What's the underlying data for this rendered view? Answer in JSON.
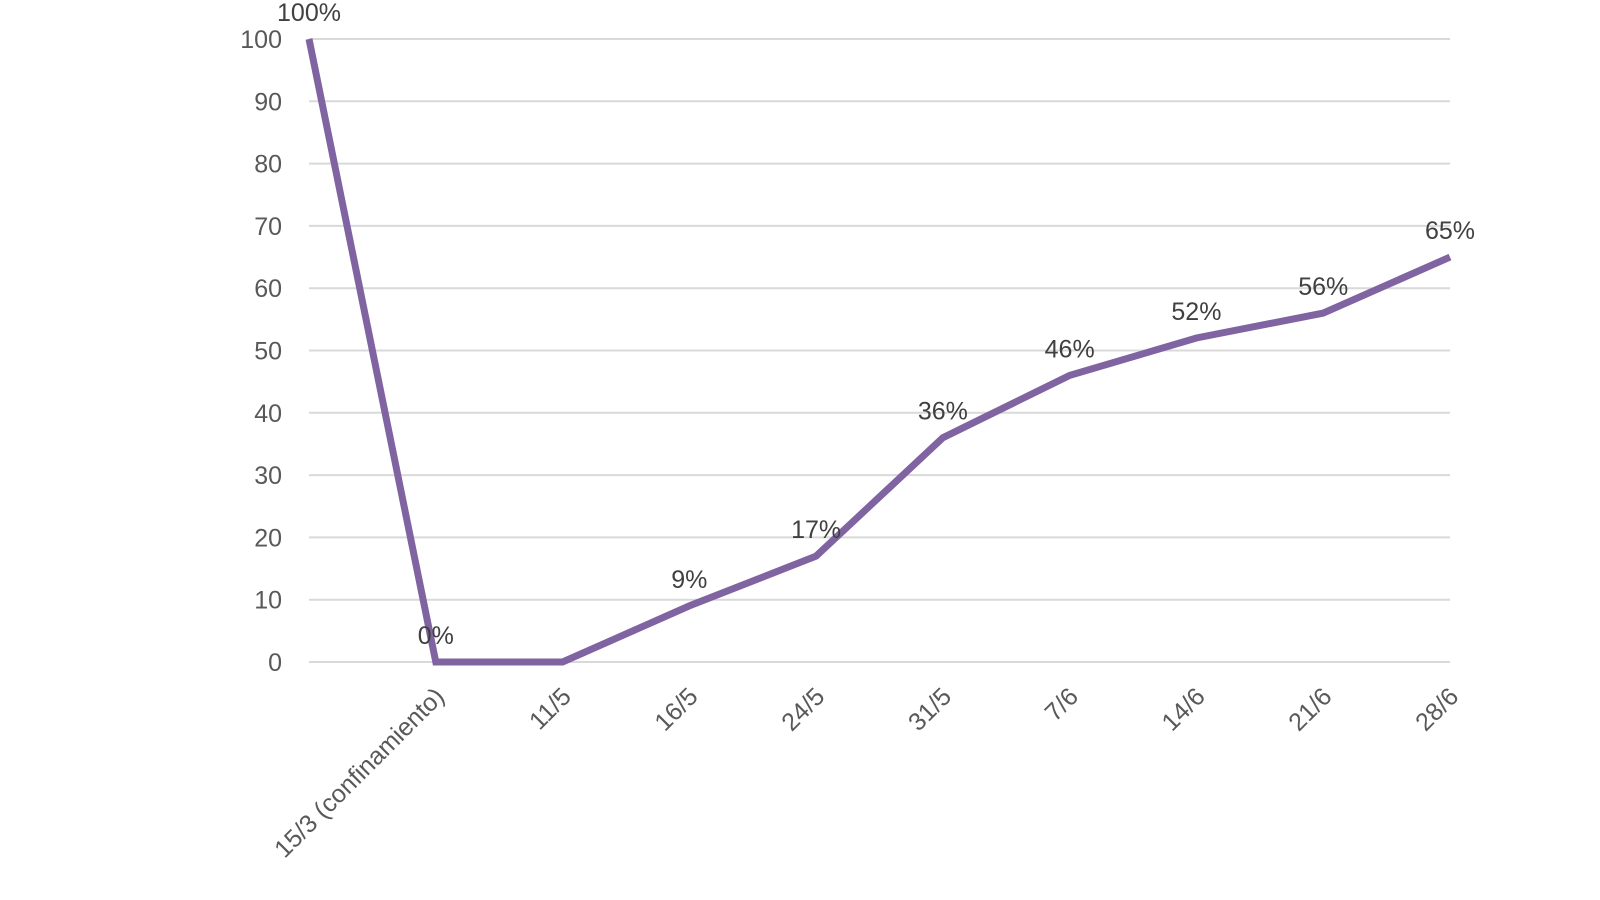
{
  "chart_data": {
    "type": "line",
    "title": "",
    "xlabel": "",
    "ylabel": "",
    "categories": [
      "",
      "15/3 (confinamiento)",
      "11/5",
      "16/5",
      "24/5",
      "31/5",
      "7/6",
      "14/6",
      "21/6",
      "28/6"
    ],
    "series": [
      {
        "values": [
          100,
          0,
          0,
          9,
          17,
          36,
          46,
          52,
          56,
          65
        ],
        "data_labels": [
          "100%",
          "0%",
          "",
          "9%",
          "17%",
          "36%",
          "46%",
          "52%",
          "56%",
          "65%"
        ],
        "color": "#8064a2"
      }
    ],
    "ylim": [
      0,
      100
    ],
    "y_ticks": [
      "0",
      "10",
      "20",
      "30",
      "40",
      "50",
      "60",
      "70",
      "80",
      "90",
      "100"
    ],
    "grid": true,
    "legend": "none",
    "colors": {
      "line": "#8064a2",
      "grid": "#d9d9d9",
      "axis_text": "#595959",
      "label_text": "#404040"
    }
  }
}
